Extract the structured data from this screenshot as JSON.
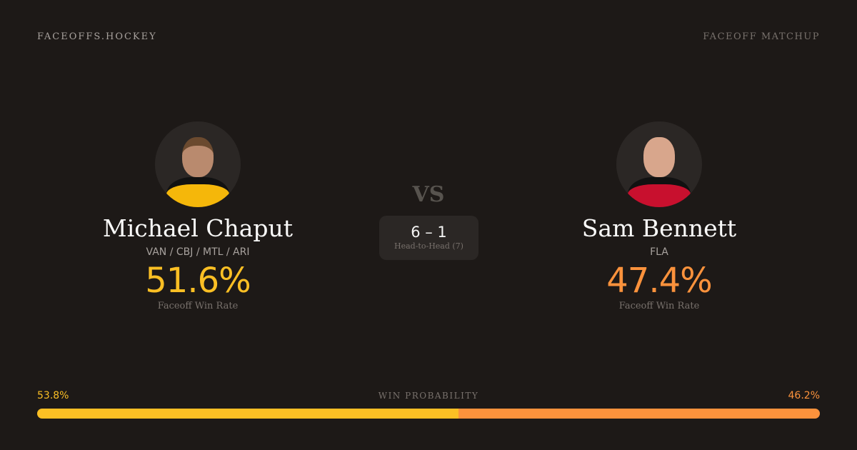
{
  "header": {
    "brand": "FACEOFFS.HOCKEY",
    "page_type": "FACEOFF MATCHUP"
  },
  "colors": {
    "player1": "#fbbf24",
    "player2": "#fb923c",
    "background": "#1d1917"
  },
  "player1": {
    "name": "Michael Chaput",
    "teams": "VAN / CBJ / MTL / ARI",
    "win_rate": "51.6%",
    "win_rate_label": "Faceoff Win Rate",
    "jersey_color": "#f5b70a"
  },
  "player2": {
    "name": "Sam Bennett",
    "teams": "FLA",
    "win_rate": "47.4%",
    "win_rate_label": "Faceoff Win Rate",
    "jersey_color": "#c8102e"
  },
  "vs": "VS",
  "head_to_head": {
    "score": "6 – 1",
    "label": "Head-to-Head (7)"
  },
  "win_probability": {
    "label": "WIN PROBABILITY",
    "player1": "53.8%",
    "player2": "46.2%",
    "player1_value": 53.8,
    "player2_value": 46.2
  }
}
